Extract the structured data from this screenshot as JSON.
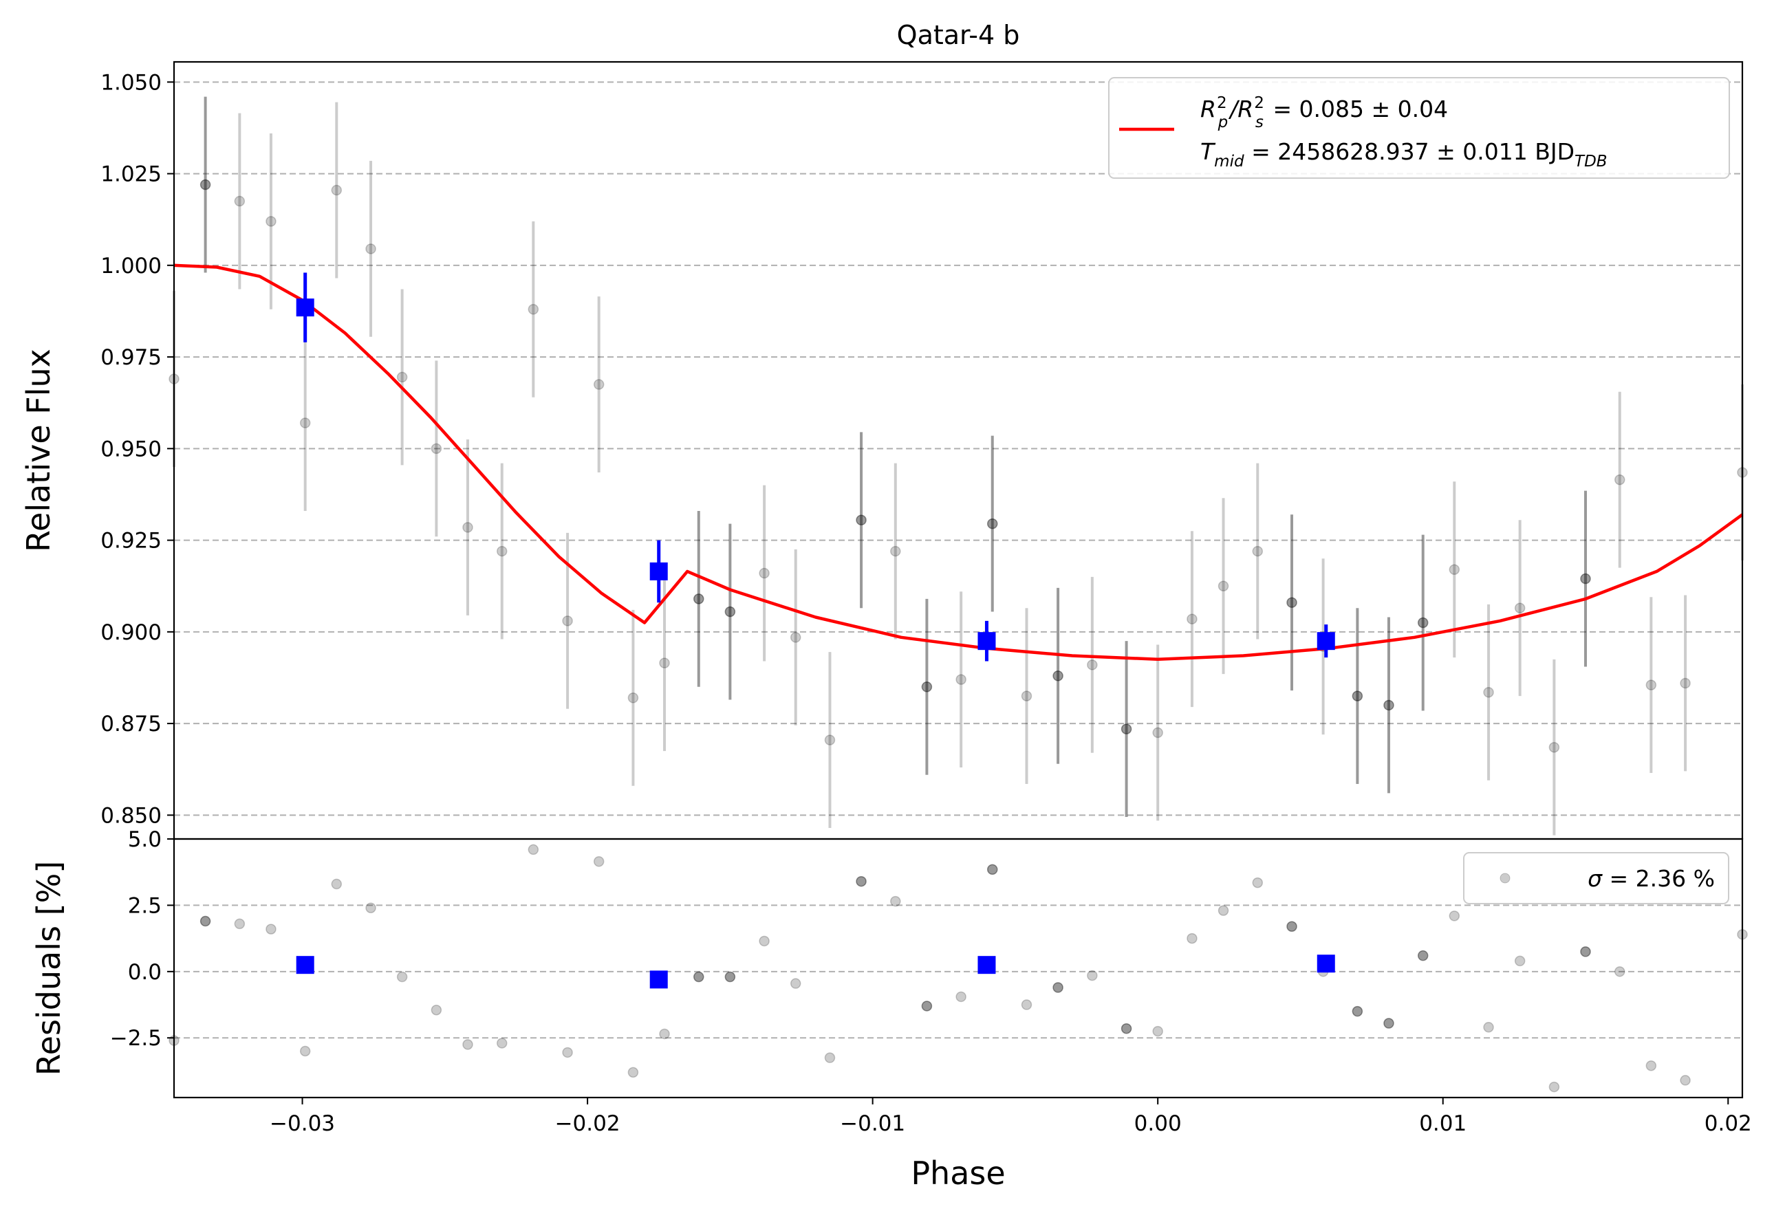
{
  "chart_data": [
    {
      "type": "scatter",
      "title": "Qatar-4 b",
      "xlabel": "",
      "ylabel": "Relative Flux",
      "xlim": [
        -0.0345,
        0.0205
      ],
      "ylim": [
        0.8435,
        1.0555
      ],
      "yticks": [
        "0.850",
        "0.875",
        "0.900",
        "0.925",
        "0.950",
        "0.975",
        "1.000",
        "1.025",
        "1.050"
      ],
      "grid": "horizontal dashed",
      "legend": {
        "placement": "top-right",
        "line1": {
          "prefix": "R",
          "sub1": "p",
          "sup1": "2",
          "slash": "/R",
          "sub2": "s",
          "sup2": "2",
          "rest": " = 0.085 ± 0.04"
        },
        "line2": {
          "prefix": "T",
          "sub1": "mid",
          "rest": " = 2458628.937 ± 0.011 BJD",
          "sub2": "TDB"
        }
      },
      "model_color": "#ff0000",
      "binned_color": "#0000ff",
      "data_points": [
        {
          "x": -0.0345,
          "y": 0.969,
          "err": 0.024,
          "a": 0.2
        },
        {
          "x": -0.0334,
          "y": 1.022,
          "err": 0.024,
          "a": 0.4
        },
        {
          "x": -0.0322,
          "y": 1.0175,
          "err": 0.024,
          "a": 0.2
        },
        {
          "x": -0.0311,
          "y": 1.012,
          "err": 0.024,
          "a": 0.2
        },
        {
          "x": -0.0299,
          "y": 0.957,
          "err": 0.024,
          "a": 0.2
        },
        {
          "x": -0.0288,
          "y": 1.0205,
          "err": 0.024,
          "a": 0.2
        },
        {
          "x": -0.0276,
          "y": 1.0045,
          "err": 0.024,
          "a": 0.2
        },
        {
          "x": -0.0265,
          "y": 0.9695,
          "err": 0.024,
          "a": 0.2
        },
        {
          "x": -0.0253,
          "y": 0.95,
          "err": 0.024,
          "a": 0.2
        },
        {
          "x": -0.0242,
          "y": 0.9285,
          "err": 0.024,
          "a": 0.2
        },
        {
          "x": -0.023,
          "y": 0.922,
          "err": 0.024,
          "a": 0.2
        },
        {
          "x": -0.0219,
          "y": 0.988,
          "err": 0.024,
          "a": 0.2
        },
        {
          "x": -0.0207,
          "y": 0.903,
          "err": 0.024,
          "a": 0.2
        },
        {
          "x": -0.0196,
          "y": 0.9675,
          "err": 0.024,
          "a": 0.2
        },
        {
          "x": -0.0184,
          "y": 0.882,
          "err": 0.024,
          "a": 0.2
        },
        {
          "x": -0.0173,
          "y": 0.8915,
          "err": 0.024,
          "a": 0.2
        },
        {
          "x": -0.0161,
          "y": 0.909,
          "err": 0.024,
          "a": 0.4
        },
        {
          "x": -0.015,
          "y": 0.9055,
          "err": 0.024,
          "a": 0.4
        },
        {
          "x": -0.0138,
          "y": 0.916,
          "err": 0.024,
          "a": 0.2
        },
        {
          "x": -0.0127,
          "y": 0.8985,
          "err": 0.024,
          "a": 0.2
        },
        {
          "x": -0.0115,
          "y": 0.8705,
          "err": 0.024,
          "a": 0.2
        },
        {
          "x": -0.0104,
          "y": 0.9305,
          "err": 0.024,
          "a": 0.4
        },
        {
          "x": -0.0092,
          "y": 0.922,
          "err": 0.024,
          "a": 0.2
        },
        {
          "x": -0.0081,
          "y": 0.885,
          "err": 0.024,
          "a": 0.4
        },
        {
          "x": -0.0069,
          "y": 0.887,
          "err": 0.024,
          "a": 0.2
        },
        {
          "x": -0.0058,
          "y": 0.9295,
          "err": 0.024,
          "a": 0.4
        },
        {
          "x": -0.0046,
          "y": 0.8825,
          "err": 0.024,
          "a": 0.2
        },
        {
          "x": -0.0035,
          "y": 0.888,
          "err": 0.024,
          "a": 0.4
        },
        {
          "x": -0.0023,
          "y": 0.891,
          "err": 0.024,
          "a": 0.2
        },
        {
          "x": -0.0011,
          "y": 0.8735,
          "err": 0.024,
          "a": 0.4
        },
        {
          "x": 0.0,
          "y": 0.8725,
          "err": 0.024,
          "a": 0.2
        },
        {
          "x": 0.0012,
          "y": 0.9035,
          "err": 0.024,
          "a": 0.2
        },
        {
          "x": 0.0023,
          "y": 0.9125,
          "err": 0.024,
          "a": 0.2
        },
        {
          "x": 0.0035,
          "y": 0.922,
          "err": 0.024,
          "a": 0.2
        },
        {
          "x": 0.0047,
          "y": 0.908,
          "err": 0.024,
          "a": 0.4
        },
        {
          "x": 0.0058,
          "y": 0.896,
          "err": 0.024,
          "a": 0.2
        },
        {
          "x": 0.007,
          "y": 0.8825,
          "err": 0.024,
          "a": 0.4
        },
        {
          "x": 0.0081,
          "y": 0.88,
          "err": 0.024,
          "a": 0.4
        },
        {
          "x": 0.0093,
          "y": 0.9025,
          "err": 0.024,
          "a": 0.4
        },
        {
          "x": 0.0104,
          "y": 0.917,
          "err": 0.024,
          "a": 0.2
        },
        {
          "x": 0.0116,
          "y": 0.8835,
          "err": 0.024,
          "a": 0.2
        },
        {
          "x": 0.0127,
          "y": 0.9065,
          "err": 0.024,
          "a": 0.2
        },
        {
          "x": 0.0139,
          "y": 0.8685,
          "err": 0.024,
          "a": 0.2
        },
        {
          "x": 0.015,
          "y": 0.9145,
          "err": 0.024,
          "a": 0.4
        },
        {
          "x": 0.0162,
          "y": 0.9415,
          "err": 0.024,
          "a": 0.2
        },
        {
          "x": 0.0173,
          "y": 0.8855,
          "err": 0.024,
          "a": 0.2
        },
        {
          "x": 0.0185,
          "y": 0.886,
          "err": 0.024,
          "a": 0.2
        },
        {
          "x": 0.0205,
          "y": 0.9435,
          "err": 0.024,
          "a": 0.2
        }
      ],
      "binned_points": [
        {
          "x": -0.0299,
          "y": 0.9885,
          "err": 0.0095
        },
        {
          "x": -0.0175,
          "y": 0.9165,
          "err": 0.0085
        },
        {
          "x": -0.006,
          "y": 0.8975,
          "err": 0.0055
        },
        {
          "x": 0.0059,
          "y": 0.8975,
          "err": 0.0045
        }
      ],
      "model_curve": [
        [
          -0.0345,
          1.0
        ],
        [
          -0.033,
          0.9995
        ],
        [
          -0.0315,
          0.997
        ],
        [
          -0.03,
          0.9905
        ],
        [
          -0.0285,
          0.9815
        ],
        [
          -0.027,
          0.9705
        ],
        [
          -0.0255,
          0.9585
        ],
        [
          -0.024,
          0.9455
        ],
        [
          -0.0225,
          0.9325
        ],
        [
          -0.021,
          0.9205
        ],
        [
          -0.0195,
          0.9105
        ],
        [
          -0.018,
          0.9025
        ],
        [
          -0.0165,
          0.9165
        ],
        [
          -0.015,
          0.9115
        ],
        [
          -0.012,
          0.904
        ],
        [
          -0.009,
          0.8985
        ],
        [
          -0.006,
          0.8955
        ],
        [
          -0.003,
          0.8935
        ],
        [
          0.0,
          0.8925
        ],
        [
          0.003,
          0.8935
        ],
        [
          0.006,
          0.8955
        ],
        [
          0.009,
          0.8985
        ],
        [
          0.012,
          0.903
        ],
        [
          0.015,
          0.909
        ],
        [
          0.0175,
          0.9165
        ],
        [
          0.019,
          0.9235
        ],
        [
          0.0205,
          0.932
        ]
      ]
    },
    {
      "type": "scatter",
      "xlabel": "Phase",
      "ylabel": "Residuals [%]",
      "xlim": [
        -0.0345,
        0.0205
      ],
      "ylim": [
        -4.75,
        5.0
      ],
      "xticks": [
        "−0.03",
        "−0.02",
        "−0.01",
        "0.00",
        "0.01",
        "0.02"
      ],
      "yticks": [
        "−2.5",
        "0.0",
        "2.5",
        "5.0"
      ],
      "grid": "horizontal dashed",
      "legend": {
        "placement": "top-right",
        "prefix": "σ",
        "rest": " = 2.36 %"
      },
      "residual_values": [
        -2.6,
        1.9,
        1.8,
        1.6,
        -3.0,
        3.3,
        2.4,
        -0.2,
        -1.45,
        -2.75,
        -2.7,
        4.6,
        -3.05,
        4.15,
        -3.8,
        -2.35,
        -0.2,
        -0.2,
        1.15,
        -0.45,
        -3.25,
        3.4,
        2.65,
        -1.3,
        -0.95,
        3.85,
        -1.25,
        -0.6,
        -0.15,
        -2.15,
        -2.25,
        1.25,
        2.3,
        3.35,
        1.7,
        0.0,
        -1.5,
        -1.95,
        0.6,
        2.1,
        -2.1,
        0.4,
        -4.35,
        0.75,
        0.0,
        -3.55,
        -4.1,
        1.4
      ],
      "binned_residuals": [
        0.25,
        -0.3,
        0.25,
        0.3
      ]
    }
  ]
}
